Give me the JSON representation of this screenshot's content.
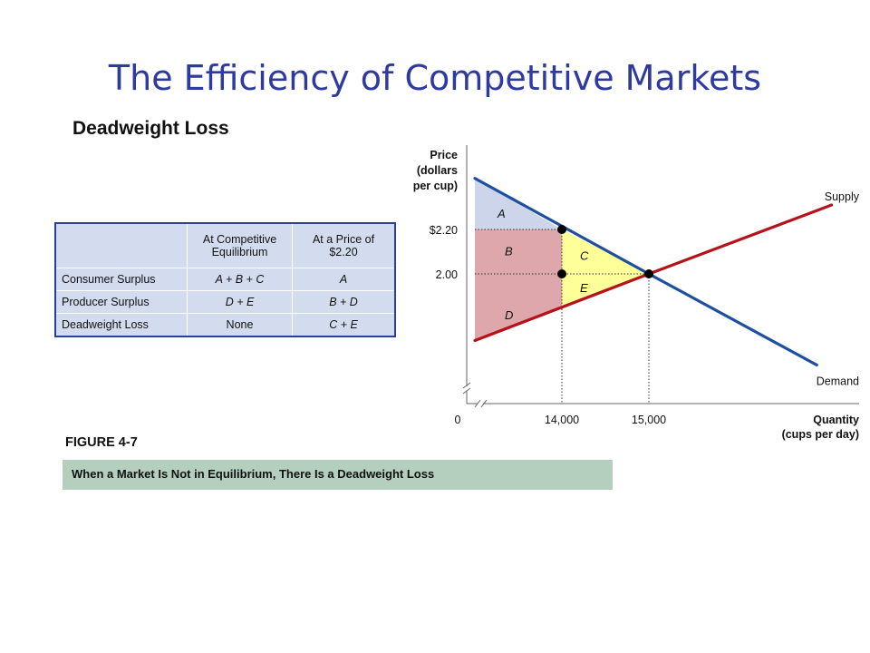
{
  "slide": {
    "title": "The Efficiency of Competitive Markets",
    "subtitle": "Deadweight Loss",
    "figure_label": "FIGURE 4-7",
    "caption": "When a Market Is Not in Equilibrium, There Is a Deadweight Loss"
  },
  "table": {
    "headers": [
      "At Competitive Equilibrium",
      "At a Price of $2.20"
    ],
    "rows": [
      {
        "label": "Consumer Surplus",
        "equilibrium": "A + B + C",
        "price_220": "A"
      },
      {
        "label": "Producer Surplus",
        "equilibrium": "D + E",
        "price_220": "B + D"
      },
      {
        "label": "Deadweight Loss",
        "equilibrium": "None",
        "price_220": "C + E"
      }
    ]
  },
  "chart_data": {
    "type": "line",
    "ylabel": "Price (dollars per cup)",
    "ylabel_lines": [
      "Price",
      "(dollars",
      "per cup)"
    ],
    "xlabel": "Quantity (cups per day)",
    "xlabel_lines": [
      "Quantity",
      "(cups per day)"
    ],
    "x_ticks": [
      {
        "label": "0",
        "value": 0
      },
      {
        "label": "14,000",
        "value": 14000
      },
      {
        "label": "15,000",
        "value": 15000
      }
    ],
    "y_ticks": [
      {
        "label": "$2.20",
        "value": 2.2
      },
      {
        "label": "2.00",
        "value": 2.0
      }
    ],
    "axis_breaks": true,
    "grid": false,
    "series": [
      {
        "name": "Supply",
        "color": "#b5121b",
        "points": [
          [
            13000,
            1.7
          ],
          [
            15000,
            2.0
          ],
          [
            17100,
            2.31
          ]
        ]
      },
      {
        "name": "Demand",
        "color": "#1f4fa0",
        "points": [
          [
            13000,
            2.43
          ],
          [
            15000,
            2.0
          ],
          [
            16930,
            1.59
          ]
        ]
      }
    ],
    "points": [
      {
        "x": 14000,
        "y": 2.2
      },
      {
        "x": 14000,
        "y": 2.0
      },
      {
        "x": 15000,
        "y": 2.0
      }
    ],
    "regions": [
      {
        "label": "A",
        "color": "#cdd5ea"
      },
      {
        "label": "B",
        "color": "#dda7ab"
      },
      {
        "label": "C",
        "color": "#ffff99"
      },
      {
        "label": "D",
        "color": "#dda7ab"
      },
      {
        "label": "E",
        "color": "#ffff99"
      }
    ],
    "ylim": [
      1.6,
      2.45
    ],
    "xlim": [
      13000,
      17300
    ]
  }
}
